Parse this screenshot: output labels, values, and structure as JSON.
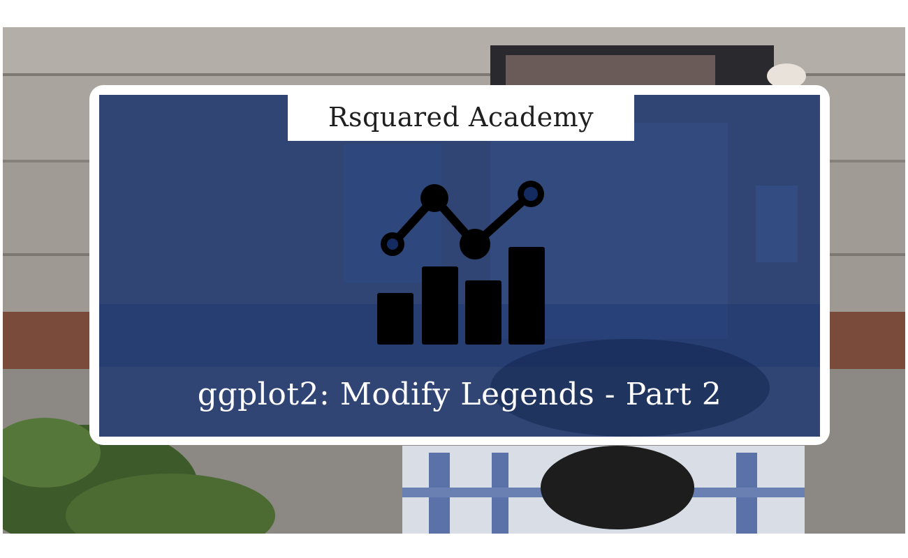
{
  "brand": {
    "name": "Rsquared Academy"
  },
  "post": {
    "title": "ggplot2: Modify Legends - Part 2"
  },
  "icon": {
    "name": "chart-analytics-icon"
  },
  "colors": {
    "panel": "#142b62",
    "frame": "#ffffff",
    "title_text": "#ffffff",
    "brand_text": "#1f1f1f",
    "icon": "#000000"
  }
}
